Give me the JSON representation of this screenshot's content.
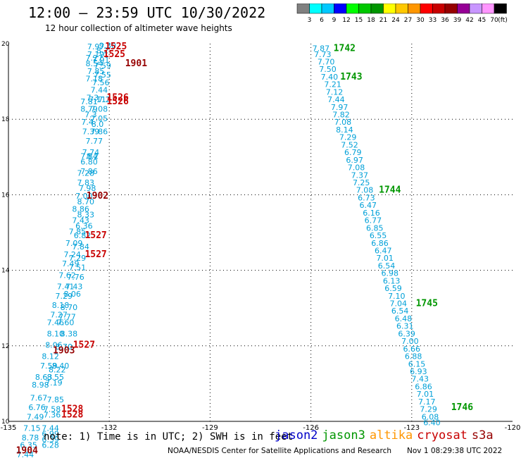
{
  "header": {
    "title": "12:00 — 23:59 UTC 10/30/2022",
    "subtitle": "12 hour collection of altimeter wave heights"
  },
  "color_scale": {
    "labels": [
      "3",
      "6",
      "9",
      "12",
      "15",
      "18",
      "21",
      "24",
      "27",
      "30",
      "33",
      "36",
      "39",
      "42",
      "45",
      "70"
    ],
    "unit": "(ft)",
    "colors": [
      "#808080",
      "#00ffff",
      "#00c8ff",
      "#0000ff",
      "#00ff00",
      "#00c800",
      "#009600",
      "#ffff00",
      "#ffc800",
      "#ff9600",
      "#ff0000",
      "#c80000",
      "#960000",
      "#960096",
      "#c896ff",
      "#ff96ff",
      "#000000"
    ]
  },
  "footer": {
    "note": "note: 1) Time is in UTC; 2) SWH is in feet",
    "satellites": [
      {
        "name": "jason2",
        "color": "#0000c8"
      },
      {
        "name": "jason3",
        "color": "#009600"
      },
      {
        "name": "altika",
        "color": "#ff9600"
      },
      {
        "name": "cryosat",
        "color": "#c80000"
      },
      {
        "name": "s3a",
        "color": "#960000"
      }
    ],
    "credit": "NOAA/NESDIS Center for Satellite Applications and Research",
    "timestamp": "Nov  1 08:29:38 UTC 2022"
  },
  "chart_data": {
    "type": "scatter",
    "xlim": [
      -135,
      -120
    ],
    "ylim": [
      10,
      20
    ],
    "x_ticks": [
      "-135",
      "-132",
      "-129",
      "-126",
      "-123",
      "-120"
    ],
    "y_ticks": [
      "10",
      "12",
      "14",
      "16",
      "18",
      "20"
    ],
    "grid": true,
    "swh_color": "#00a0d8",
    "time_colors": {
      "jason3": "#009600",
      "cryosat": "#c80000",
      "s3a": "#960000"
    },
    "track_east": {
      "points": [
        [
          -125.7,
          19.8,
          "7.87"
        ],
        [
          -125.65,
          19.65,
          "7.73"
        ],
        [
          -125.55,
          19.45,
          "7.70"
        ],
        [
          -125.5,
          19.25,
          "7.50"
        ],
        [
          -125.45,
          19.05,
          "7.40"
        ],
        [
          -125.35,
          18.85,
          "7.21"
        ],
        [
          -125.3,
          18.65,
          "7.12"
        ],
        [
          -125.25,
          18.45,
          "7.44"
        ],
        [
          -125.15,
          18.25,
          "7.97"
        ],
        [
          -125.1,
          18.05,
          "7.82"
        ],
        [
          -125.05,
          17.85,
          "7.08"
        ],
        [
          -125.0,
          17.65,
          "8.14"
        ],
        [
          -124.9,
          17.45,
          "7.29"
        ],
        [
          -124.85,
          17.25,
          "7.52"
        ],
        [
          -124.75,
          17.05,
          "6.79"
        ],
        [
          -124.7,
          16.85,
          "6.97"
        ],
        [
          -124.65,
          16.65,
          "7.08"
        ],
        [
          -124.55,
          16.45,
          "7.37"
        ],
        [
          -124.5,
          16.25,
          "7.25"
        ],
        [
          -124.4,
          16.05,
          "7.08"
        ],
        [
          -124.35,
          15.85,
          "6.73"
        ],
        [
          -124.3,
          15.65,
          "6.47"
        ],
        [
          -124.2,
          15.45,
          "6.16"
        ],
        [
          -124.15,
          15.25,
          "6.77"
        ],
        [
          -124.1,
          15.05,
          "6.85"
        ],
        [
          -124.0,
          14.85,
          "6.55"
        ],
        [
          -123.95,
          14.65,
          "6.86"
        ],
        [
          -123.85,
          14.45,
          "6.47"
        ],
        [
          -123.8,
          14.25,
          "7.01"
        ],
        [
          -123.75,
          14.05,
          "6.54"
        ],
        [
          -123.65,
          13.85,
          "6.98"
        ],
        [
          -123.6,
          13.65,
          "6.13"
        ],
        [
          -123.55,
          13.45,
          "6.59"
        ],
        [
          -123.45,
          13.25,
          "7.10"
        ],
        [
          -123.4,
          13.05,
          "7.04"
        ],
        [
          -123.35,
          12.85,
          "6.54"
        ],
        [
          -123.25,
          12.65,
          "6.48"
        ],
        [
          -123.2,
          12.45,
          "6.31"
        ],
        [
          -123.15,
          12.25,
          "6.39"
        ],
        [
          -123.05,
          12.05,
          "7.00"
        ],
        [
          -123.0,
          11.85,
          "6.66"
        ],
        [
          -122.95,
          11.65,
          "6.88"
        ],
        [
          -122.85,
          11.45,
          "6.15"
        ],
        [
          -122.8,
          11.25,
          "6.93"
        ],
        [
          -122.75,
          11.05,
          "7.43"
        ],
        [
          -122.65,
          10.85,
          "6.86"
        ],
        [
          -122.6,
          10.65,
          "7.01"
        ],
        [
          -122.55,
          10.45,
          "7.17"
        ],
        [
          -122.5,
          10.25,
          "7.29"
        ],
        [
          -122.45,
          10.05,
          "6.08"
        ],
        [
          -122.4,
          9.9,
          "6.40"
        ]
      ],
      "times": [
        {
          "label": "1742",
          "x": -125.0,
          "y": 19.8,
          "sat": "jason3"
        },
        {
          "label": "1743",
          "x": -124.8,
          "y": 19.05,
          "sat": "jason3"
        },
        {
          "label": "1744",
          "x": -123.65,
          "y": 16.05,
          "sat": "jason3"
        },
        {
          "label": "1745",
          "x": -122.55,
          "y": 13.05,
          "sat": "jason3"
        },
        {
          "label": "1746",
          "x": -121.5,
          "y": 10.3,
          "sat": "jason3"
        }
      ]
    },
    "track_west": {
      "points": [
        [
          -132.4,
          19.85,
          "7.97"
        ],
        [
          -132.05,
          19.88,
          "9.30"
        ],
        [
          -132.2,
          19.75,
          "8.2"
        ],
        [
          -132.4,
          19.65,
          "7.19"
        ],
        [
          -132.45,
          19.55,
          "7.27"
        ],
        [
          -132.25,
          19.5,
          "7.91"
        ],
        [
          -132.45,
          19.4,
          "8.54"
        ],
        [
          -132.2,
          19.35,
          "7.59"
        ],
        [
          -132.4,
          19.2,
          "7.85"
        ],
        [
          -132.2,
          19.1,
          "7.55"
        ],
        [
          -132.45,
          19.0,
          "7.18"
        ],
        [
          -132.25,
          18.9,
          "7.56"
        ],
        [
          -132.3,
          18.7,
          "7.44"
        ],
        [
          -132.5,
          18.5,
          "7.3"
        ],
        [
          -132.35,
          18.45,
          "7.11"
        ],
        [
          -132.6,
          18.4,
          "7.81"
        ],
        [
          -132.15,
          18.45,
          "7.2"
        ],
        [
          -132.6,
          18.2,
          "8.79"
        ],
        [
          -132.3,
          18.2,
          "7.08"
        ],
        [
          -132.55,
          18.05,
          "7.3"
        ],
        [
          -132.3,
          17.95,
          "7.05"
        ],
        [
          -132.65,
          17.85,
          "7.4"
        ],
        [
          -132.35,
          17.8,
          "8.0"
        ],
        [
          -132.55,
          17.6,
          "7.39"
        ],
        [
          -132.3,
          17.6,
          "7.86"
        ],
        [
          -132.45,
          17.35,
          "7.77"
        ],
        [
          -132.55,
          17.05,
          "7.74"
        ],
        [
          -132.6,
          16.95,
          "7.84"
        ],
        [
          -132.6,
          16.8,
          "6.80"
        ],
        [
          -132.5,
          16.95,
          "8.2"
        ],
        [
          -132.7,
          16.5,
          "7.28"
        ],
        [
          -132.6,
          16.55,
          "7.86"
        ],
        [
          -132.7,
          16.25,
          "7.83"
        ],
        [
          -132.65,
          16.1,
          "7.98"
        ],
        [
          -132.75,
          15.9,
          "7.00"
        ],
        [
          -132.7,
          15.75,
          "8.70"
        ],
        [
          -132.85,
          15.55,
          "8.86"
        ],
        [
          -132.7,
          15.4,
          "8.33"
        ],
        [
          -132.85,
          15.25,
          "7.43"
        ],
        [
          -132.75,
          15.1,
          "6.36"
        ],
        [
          -132.95,
          14.95,
          "7.85"
        ],
        [
          -132.8,
          14.85,
          "6.82"
        ],
        [
          -133.05,
          14.65,
          "7.09"
        ],
        [
          -132.85,
          14.55,
          "7.84"
        ],
        [
          -133.1,
          14.35,
          "7.24"
        ],
        [
          -132.95,
          14.25,
          "7.29"
        ],
        [
          -133.15,
          14.1,
          "7.49"
        ],
        [
          -132.95,
          14.0,
          "7.51"
        ],
        [
          -133.25,
          13.8,
          "7.62"
        ],
        [
          -133.0,
          13.75,
          "7.76"
        ],
        [
          -133.3,
          13.5,
          "7.41"
        ],
        [
          -133.05,
          13.5,
          "7.43"
        ],
        [
          -133.35,
          13.25,
          "7.29"
        ],
        [
          -133.1,
          13.3,
          "8.06"
        ],
        [
          -133.45,
          13.0,
          "8.18"
        ],
        [
          -133.2,
          12.95,
          "8.70"
        ],
        [
          -133.5,
          12.75,
          "7.27"
        ],
        [
          -133.25,
          12.7,
          "7.77"
        ],
        [
          -133.6,
          12.55,
          "7.46"
        ],
        [
          -133.3,
          12.55,
          "7.60"
        ],
        [
          -133.6,
          12.25,
          "8.10"
        ],
        [
          -133.2,
          12.25,
          "8.38"
        ],
        [
          -133.65,
          11.95,
          "8.06"
        ],
        [
          -133.35,
          11.9,
          "8.70"
        ],
        [
          -133.75,
          11.65,
          "8.12"
        ],
        [
          -133.8,
          11.4,
          "7.59"
        ],
        [
          -133.45,
          11.4,
          "8.40"
        ],
        [
          -133.55,
          11.3,
          "8.22"
        ],
        [
          -133.95,
          11.1,
          "8.63"
        ],
        [
          -133.6,
          11.1,
          "8.55"
        ],
        [
          -133.65,
          10.95,
          "7.19"
        ],
        [
          -134.05,
          10.9,
          "8.98"
        ],
        [
          -134.1,
          10.55,
          "7.67"
        ],
        [
          -133.6,
          10.5,
          "7.85"
        ],
        [
          -134.15,
          10.3,
          "6.76"
        ],
        [
          -133.7,
          10.25,
          "7.58"
        ],
        [
          -134.2,
          10.05,
          "7.49"
        ],
        [
          -133.7,
          10.1,
          "7.36"
        ],
        [
          -134.3,
          9.75,
          "7.15"
        ],
        [
          -133.75,
          9.75,
          "7.44"
        ],
        [
          -133.75,
          9.6,
          "6.99"
        ],
        [
          -134.35,
          9.5,
          "8.78"
        ],
        [
          -133.75,
          9.45,
          "6.39"
        ],
        [
          -134.4,
          9.3,
          "6.35"
        ],
        [
          -134.5,
          9.05,
          "7.44"
        ],
        [
          -133.75,
          9.3,
          "6.28"
        ]
      ],
      "times": [
        {
          "label": "1525",
          "x": -131.8,
          "y": 19.85,
          "sat": "cryosat"
        },
        {
          "label": "1525",
          "x": -131.85,
          "y": 19.65,
          "sat": "cryosat"
        },
        {
          "label": "1901",
          "x": -131.2,
          "y": 19.4,
          "sat": "s3a"
        },
        {
          "label": "1526",
          "x": -131.75,
          "y": 18.5,
          "sat": "cryosat"
        },
        {
          "label": "1526",
          "x": -131.75,
          "y": 18.4,
          "sat": "cryosat"
        },
        {
          "label": "1902",
          "x": -132.35,
          "y": 15.9,
          "sat": "s3a"
        },
        {
          "label": "1527",
          "x": -132.4,
          "y": 14.85,
          "sat": "cryosat"
        },
        {
          "label": "1527",
          "x": -132.4,
          "y": 14.35,
          "sat": "cryosat"
        },
        {
          "label": "1527",
          "x": -132.75,
          "y": 11.95,
          "sat": "cryosat"
        },
        {
          "label": "1903",
          "x": -133.35,
          "y": 11.8,
          "sat": "s3a"
        },
        {
          "label": "1528",
          "x": -133.1,
          "y": 10.25,
          "sat": "cryosat"
        },
        {
          "label": "1528",
          "x": -133.1,
          "y": 10.1,
          "sat": "cryosat"
        },
        {
          "label": "1904",
          "x": -134.45,
          "y": 9.15,
          "sat": "s3a"
        }
      ]
    }
  }
}
